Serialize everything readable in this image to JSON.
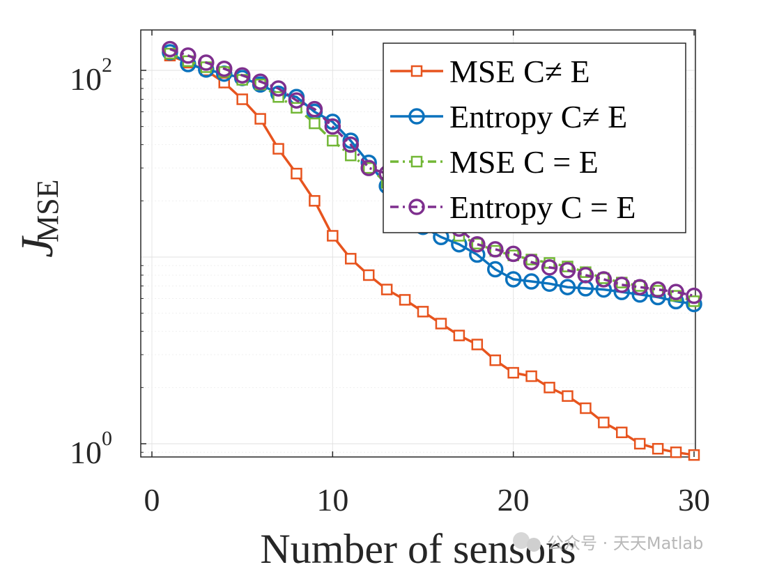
{
  "chart_data": {
    "type": "line",
    "title": "",
    "xlabel": "Number of sensors",
    "ylabel": "J",
    "ylabel_subscript": "MSE",
    "xlim": [
      0,
      30
    ],
    "ylim": [
      0.8,
      140
    ],
    "yscale": "log",
    "grid": true,
    "legend_position": "top-right",
    "x_ticks": [
      "0",
      "10",
      "20",
      "30"
    ],
    "y_ticks": [
      {
        "base": "10",
        "exp": "0",
        "value": 1
      },
      {
        "base": "10",
        "exp": "2",
        "value": 100
      }
    ],
    "x": [
      1,
      2,
      3,
      4,
      5,
      6,
      7,
      8,
      9,
      10,
      11,
      12,
      13,
      14,
      15,
      16,
      17,
      18,
      19,
      20,
      21,
      22,
      23,
      24,
      25,
      26,
      27,
      28,
      29,
      30
    ],
    "series": [
      {
        "name": "MSE C≠ E",
        "color": "#e7541e",
        "marker": "square",
        "dash": "solid",
        "values": [
          120,
          110,
          100,
          86,
          70,
          55,
          38,
          28,
          20,
          13,
          9.8,
          8.0,
          6.7,
          5.9,
          5.1,
          4.4,
          3.8,
          3.4,
          2.8,
          2.4,
          2.3,
          2.0,
          1.8,
          1.55,
          1.3,
          1.15,
          1.0,
          0.94,
          0.9,
          0.87
        ]
      },
      {
        "name": "Entropy C≠ E",
        "color": "#0b72bd",
        "marker": "circle",
        "dash": "solid",
        "values": [
          125,
          108,
          101,
          96,
          91,
          84,
          75,
          72,
          60,
          53,
          42,
          32,
          24,
          17,
          14.5,
          12.8,
          11.7,
          10.3,
          8.6,
          7.6,
          7.4,
          7.2,
          6.9,
          6.8,
          6.7,
          6.5,
          6.3,
          6.1,
          5.8,
          5.6
        ]
      },
      {
        "name": "MSE C = E",
        "color": "#72b736",
        "marker": "square",
        "dash": "dashdot",
        "values": [
          123,
          112,
          104,
          98,
          89,
          84,
          72,
          63,
          52,
          42,
          35,
          30,
          25,
          21,
          19,
          17,
          13,
          11.8,
          10.8,
          10.2,
          9.7,
          9.3,
          8.9,
          8.3,
          7.7,
          7.3,
          7.0,
          6.6,
          6.2,
          5.8
        ]
      },
      {
        "name": "Entropy C = E",
        "color": "#7e2f8e",
        "marker": "circle",
        "dash": "dashdot",
        "values": [
          130,
          120,
          110,
          102,
          94,
          87,
          80,
          69,
          62,
          50,
          40,
          30,
          28,
          19,
          18,
          15.5,
          14.2,
          11.7,
          11,
          10.4,
          9.4,
          8.8,
          8.5,
          8,
          7.6,
          7.1,
          6.9,
          6.7,
          6.5,
          6.2
        ]
      }
    ]
  },
  "watermark": "公众号 · 天天Matlab"
}
